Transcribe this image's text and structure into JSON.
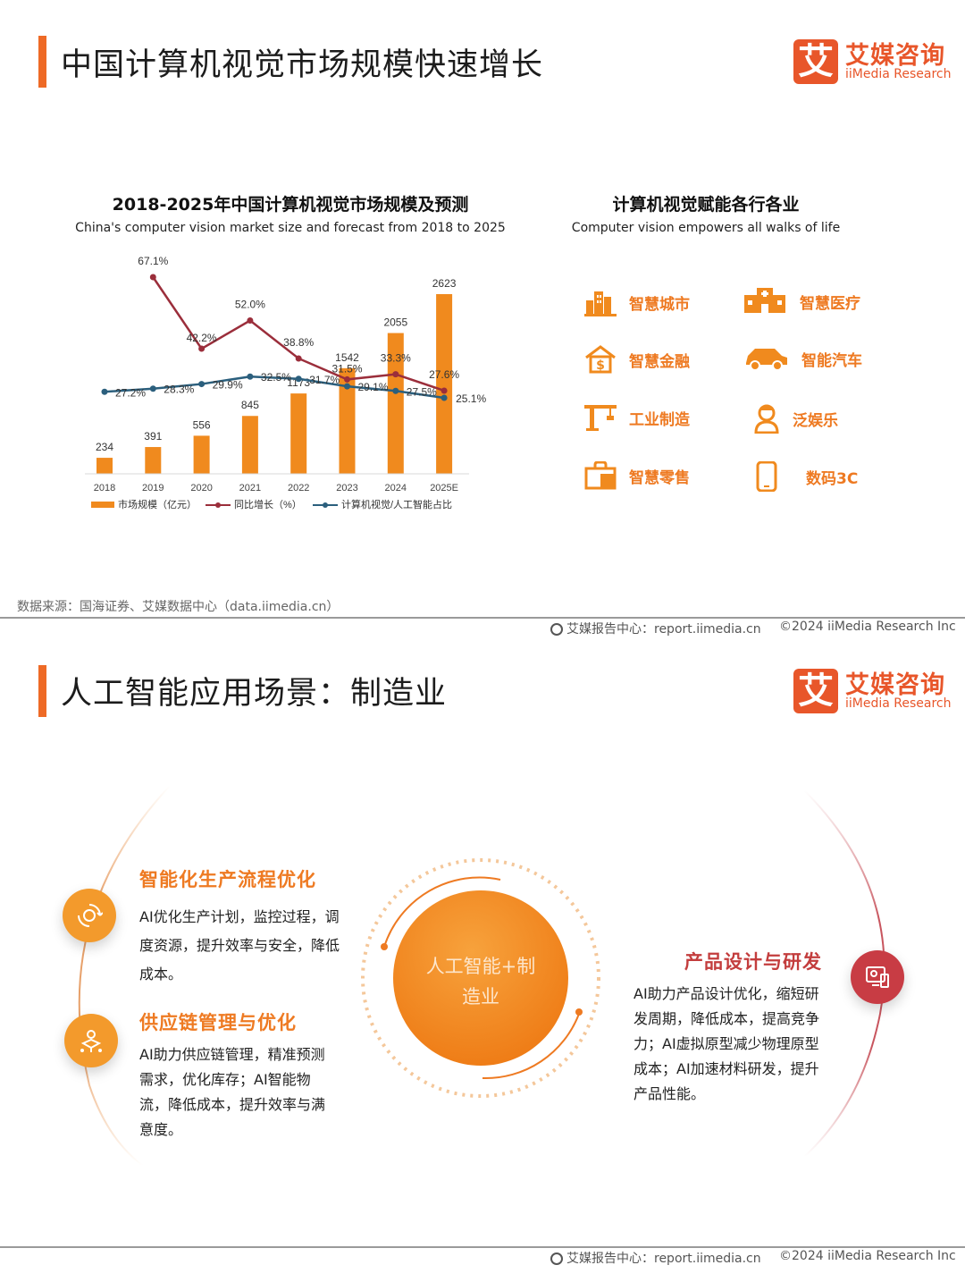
{
  "slide1": {
    "title": "中国计算机视觉市场规模快速增长",
    "logo": {
      "cn": "艾媒咨询",
      "en": "iiMedia Research",
      "mark": "艾"
    },
    "chart_title": "2018-2025年中国计算机视觉市场规模及预测",
    "chart_subtitle": "China's computer vision market size and forecast from 2018 to 2025",
    "industries_title": "计算机视觉赋能各行各业",
    "industries_subtitle": "Computer vision empowers all walks of life",
    "industries": [
      {
        "label": "智慧城市",
        "icon": "city-buildings-icon"
      },
      {
        "label": "智慧医疗",
        "icon": "hospital-icon"
      },
      {
        "label": "智慧金融",
        "icon": "finance-house-dollar-icon"
      },
      {
        "label": "智能汽车",
        "icon": "car-icon"
      },
      {
        "label": "工业制造",
        "icon": "crane-icon"
      },
      {
        "label": "泛娱乐",
        "icon": "entertainment-person-icon"
      },
      {
        "label": "智慧零售",
        "icon": "shopping-bag-icon"
      },
      {
        "label": "数码3C",
        "icon": "smartphone-icon"
      }
    ],
    "source": "数据来源：国海证券、艾媒数据中心（data.iimedia.cn）",
    "footer_left": "艾媒报告中心：report.iimedia.cn",
    "footer_right": "©2024  iiMedia Research  Inc"
  },
  "chart_data": {
    "type": "bar",
    "categories": [
      "2018",
      "2019",
      "2020",
      "2021",
      "2022",
      "2023",
      "2024",
      "2025E"
    ],
    "series": [
      {
        "name": "市场规模（亿元）",
        "kind": "bar",
        "values": [
          234,
          391,
          556,
          845,
          1173,
          1542,
          2055,
          2623
        ],
        "color": "#f08a1e"
      },
      {
        "name": "同比增长（%）",
        "kind": "line",
        "values": [
          null,
          67.1,
          42.2,
          52.0,
          38.8,
          31.5,
          33.3,
          27.6
        ],
        "color": "#9b2e3b"
      },
      {
        "name": "计算机视觉/人工智能占比",
        "kind": "line",
        "values": [
          27.2,
          28.3,
          29.9,
          32.5,
          31.7,
          29.1,
          27.5,
          25.1
        ],
        "color": "#2b5f7d"
      }
    ],
    "bar_labels": [
      "234",
      "391",
      "556",
      "845",
      "1173",
      "1542",
      "2055",
      "2623"
    ],
    "growth_labels": [
      "",
      "67.1%",
      "42.2%",
      "52.0%",
      "38.8%",
      "31.5%",
      "33.3%",
      "27.6%"
    ],
    "share_labels": [
      "27.2%",
      "28.3%",
      "29.9%",
      "32.5%",
      "31.7%",
      "29.1%",
      "27.5%",
      "25.1%"
    ],
    "legend_position": "bottom",
    "grid": false
  },
  "slide2": {
    "title": "人工智能应用场景：制造业",
    "center": "人工智能+制造业",
    "sections": [
      {
        "heading": "智能化生产流程优化",
        "body": "AI优化生产计划，监控过程，调度资源，提升效率与安全，降低成本。",
        "icon": "gear-cycle-icon"
      },
      {
        "heading": "供应链管理与优化",
        "body": "AI助力供应链管理，精准预测需求，优化库存；AI智能物流，降低成本，提升效率与满意度。",
        "icon": "supply-network-icon"
      },
      {
        "heading": "产品设计与研发",
        "body": "AI助力产品设计优化，缩短研发周期，降低成本，提高竞争力；AI虚拟原型减少物理原型成本；AI加速材料研发，提升产品性能。",
        "icon": "design-screen-icon"
      }
    ],
    "footer_left": "艾媒报告中心：report.iimedia.cn",
    "footer_right": "©2024  iiMedia Research  Inc"
  }
}
